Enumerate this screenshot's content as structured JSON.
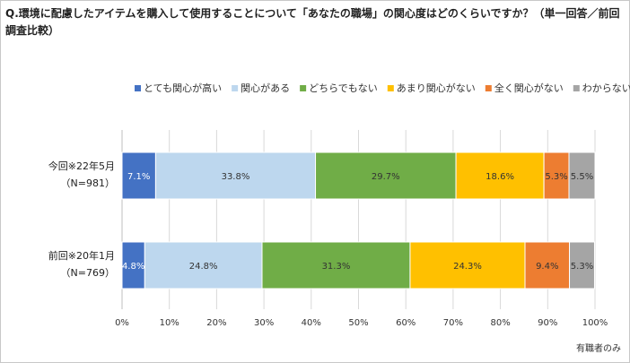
{
  "question": "Q.環境に配慮したアイテムを購入して使用することについて「あなたの職場」の関心度はどのくらいですか？（単一回答／前回調査比較）",
  "footnote": "有職者のみ",
  "chart_data": {
    "type": "bar",
    "orientation": "horizontal",
    "stacked": true,
    "percent": true,
    "xlim": [
      0,
      100
    ],
    "xticks": [
      "0%",
      "10%",
      "20%",
      "30%",
      "40%",
      "50%",
      "60%",
      "70%",
      "80%",
      "90%",
      "100%"
    ],
    "legend_position": "top",
    "grid": "vertical-lines",
    "categories": [
      {
        "line1": "今回※22年5月",
        "line2": "（N=981）"
      },
      {
        "line1": "前回※20年1月",
        "line2": "（N=769）"
      }
    ],
    "series": [
      {
        "name": "とても関心が高い",
        "color": "#4472c4",
        "values": [
          7.1,
          4.8
        ],
        "labels": [
          "7.1%",
          "4.8%"
        ],
        "label_color": "#ffffff"
      },
      {
        "name": "関心がある",
        "color": "#bdd7ee",
        "values": [
          33.8,
          24.8
        ],
        "labels": [
          "33.8%",
          "24.8%"
        ],
        "label_color": "#333333"
      },
      {
        "name": "どちらでもない",
        "color": "#70ad47",
        "values": [
          29.7,
          31.3
        ],
        "labels": [
          "29.7%",
          "31.3%"
        ],
        "label_color": "#333333"
      },
      {
        "name": "あまり関心がない",
        "color": "#ffc000",
        "values": [
          18.6,
          24.3
        ],
        "labels": [
          "18.6%",
          "24.3%"
        ],
        "label_color": "#333333"
      },
      {
        "name": "全く関心がない",
        "color": "#ed7d31",
        "values": [
          5.3,
          9.4
        ],
        "labels": [
          "5.3%",
          "9.4%"
        ],
        "label_color": "#333333"
      },
      {
        "name": "わからない",
        "color": "#a5a5a5",
        "values": [
          5.5,
          5.3
        ],
        "labels": [
          "5.5%",
          "5.3%"
        ],
        "label_color": "#333333"
      }
    ]
  }
}
